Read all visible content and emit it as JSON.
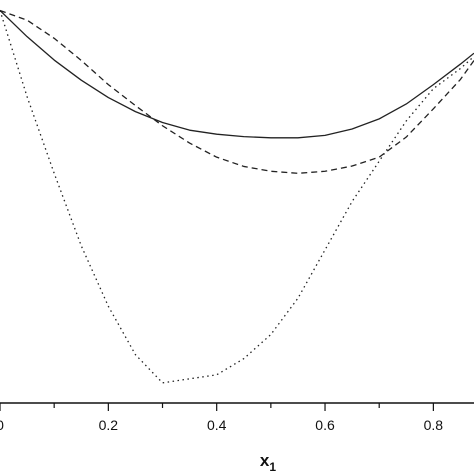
{
  "chart_data": {
    "type": "line",
    "xlabel": "x",
    "xlabel_subscript": "1",
    "ylabel": "",
    "xlim": [
      0,
      0.875
    ],
    "ylim": [
      0,
      1
    ],
    "x_ticks": [
      0,
      0.2,
      0.4,
      0.6,
      0.8
    ],
    "x_tick_labels": [
      "0",
      "0.2",
      "0.4",
      "0.6",
      "0.8"
    ],
    "grid": false,
    "series": [
      {
        "style": "solid",
        "color": "#222222",
        "x": [
          0,
          0.05,
          0.1,
          0.15,
          0.2,
          0.25,
          0.3,
          0.35,
          0.4,
          0.45,
          0.5,
          0.55,
          0.6,
          0.65,
          0.7,
          0.75,
          0.8,
          0.85,
          0.875
        ],
        "y": [
          0.974,
          0.909,
          0.851,
          0.801,
          0.758,
          0.723,
          0.696,
          0.677,
          0.667,
          0.661,
          0.658,
          0.658,
          0.664,
          0.68,
          0.705,
          0.742,
          0.79,
          0.841,
          0.868
        ]
      },
      {
        "style": "dashed",
        "color": "#222222",
        "x": [
          0,
          0.05,
          0.1,
          0.15,
          0.2,
          0.25,
          0.3,
          0.35,
          0.4,
          0.45,
          0.5,
          0.55,
          0.6,
          0.65,
          0.7,
          0.75,
          0.8,
          0.85,
          0.875
        ],
        "y": [
          0.974,
          0.95,
          0.905,
          0.85,
          0.79,
          0.738,
          0.688,
          0.645,
          0.61,
          0.587,
          0.575,
          0.57,
          0.575,
          0.588,
          0.61,
          0.66,
          0.73,
          0.803,
          0.85
        ]
      },
      {
        "style": "dotted",
        "color": "#222222",
        "x": [
          0,
          0.05,
          0.1,
          0.15,
          0.2,
          0.25,
          0.3,
          0.35,
          0.4,
          0.45,
          0.5,
          0.55,
          0.6,
          0.65,
          0.7,
          0.75,
          0.8,
          0.85,
          0.875
        ],
        "y": [
          0.974,
          0.76,
          0.57,
          0.39,
          0.24,
          0.12,
          0.05,
          0.06,
          0.07,
          0.11,
          0.17,
          0.26,
          0.38,
          0.5,
          0.6,
          0.7,
          0.78,
          0.83,
          0.86
        ]
      }
    ]
  }
}
